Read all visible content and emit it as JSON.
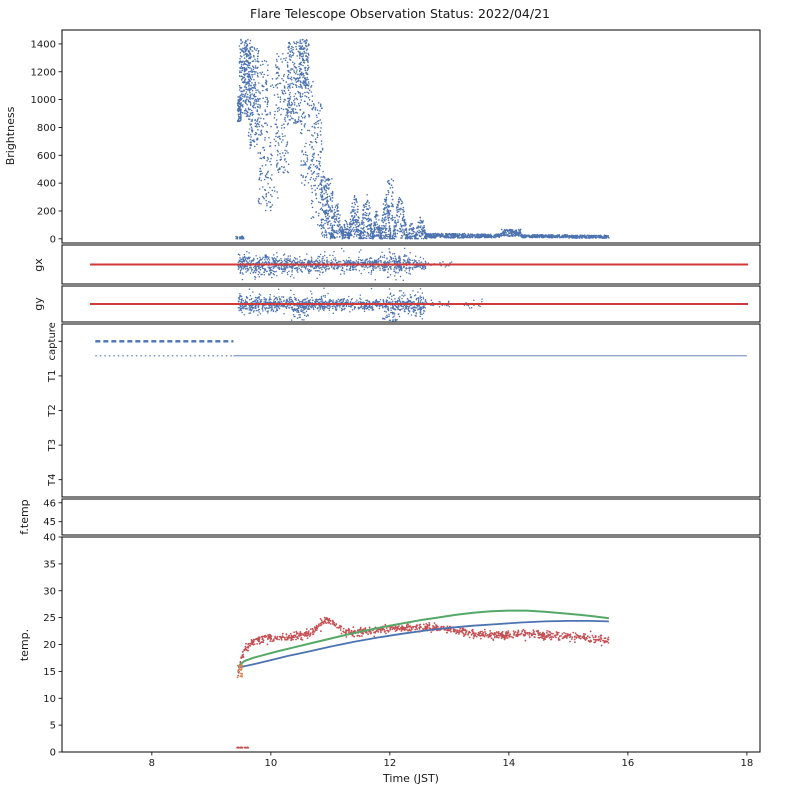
{
  "figure": {
    "title": "Flare Telescope Observation Status: 2022/04/21",
    "xlabel": "Time (JST)",
    "xlim": [
      6.49,
      18.22
    ],
    "xticks": [
      8,
      10,
      12,
      14,
      16,
      18
    ],
    "background": "#ffffff",
    "colors": {
      "blue": "#4c72b0",
      "red": "#c44e52",
      "green": "#55a868",
      "orange": "#dd8452",
      "red_line": "#d03a3a"
    }
  },
  "chart_data": [
    {
      "id": "brightness",
      "type": "scatter",
      "ylabel": "Brightness",
      "ylim": [
        -30,
        1500
      ],
      "yticks": [
        0,
        200,
        400,
        600,
        800,
        1000,
        1200,
        1400
      ],
      "color": "#4c72b0",
      "segments": [
        {
          "x0": 9.44,
          "x1": 9.5,
          "n": 70,
          "dist": "uniform",
          "y0": 840,
          "y1": 1020
        },
        {
          "x0": 9.47,
          "x1": 9.66,
          "n": 260,
          "dist": "uniform",
          "y0": 880,
          "y1": 1435
        },
        {
          "x0": 9.62,
          "x1": 9.8,
          "n": 200,
          "dist": "uniform",
          "y0": 650,
          "y1": 1380
        },
        {
          "x0": 9.78,
          "x1": 9.96,
          "n": 110,
          "dist": "uniform",
          "y0": 230,
          "y1": 1280
        },
        {
          "x0": 9.9,
          "x1": 10.12,
          "n": 70,
          "dist": "uniform",
          "y0": 160,
          "y1": 1150
        },
        {
          "x0": 10.08,
          "x1": 10.3,
          "n": 140,
          "dist": "uniform",
          "y0": 450,
          "y1": 1340
        },
        {
          "x0": 10.28,
          "x1": 10.5,
          "n": 190,
          "dist": "uniform",
          "y0": 820,
          "y1": 1420
        },
        {
          "x0": 10.48,
          "x1": 10.64,
          "n": 150,
          "dist": "uniform",
          "y0": 1080,
          "y1": 1435
        },
        {
          "x0": 10.5,
          "x1": 10.72,
          "n": 110,
          "dist": "uniform",
          "y0": 380,
          "y1": 1150
        },
        {
          "x0": 10.68,
          "x1": 10.88,
          "n": 120,
          "dist": "uniform",
          "y0": 90,
          "y1": 980
        },
        {
          "x0": 10.84,
          "x1": 11.04,
          "n": 170,
          "dist": "uniform",
          "y0": 0,
          "y1": 460
        },
        {
          "x0": 11.0,
          "x1": 11.22,
          "n": 130,
          "dist": "arch",
          "y0": 0,
          "y1": 265
        },
        {
          "x0": 11.2,
          "x1": 11.32,
          "n": 60,
          "dist": "arch",
          "y0": 0,
          "y1": 140
        },
        {
          "x0": 11.3,
          "x1": 11.52,
          "n": 150,
          "dist": "arch",
          "y0": 0,
          "y1": 315
        },
        {
          "x0": 11.5,
          "x1": 11.72,
          "n": 150,
          "dist": "arch",
          "y0": 0,
          "y1": 335
        },
        {
          "x0": 11.7,
          "x1": 11.86,
          "n": 90,
          "dist": "arch",
          "y0": 0,
          "y1": 205
        },
        {
          "x0": 11.84,
          "x1": 12.02,
          "n": 130,
          "dist": "arch",
          "y0": 0,
          "y1": 330
        },
        {
          "x0": 11.96,
          "x1": 12.06,
          "n": 45,
          "dist": "uniform",
          "y0": 120,
          "y1": 430
        },
        {
          "x0": 12.04,
          "x1": 12.3,
          "n": 150,
          "dist": "arch",
          "y0": 0,
          "y1": 300
        },
        {
          "x0": 12.28,
          "x1": 12.44,
          "n": 60,
          "dist": "arch",
          "y0": 0,
          "y1": 120
        },
        {
          "x0": 12.42,
          "x1": 12.62,
          "n": 90,
          "dist": "arch",
          "y0": 0,
          "y1": 160
        },
        {
          "x0": 9.4,
          "x1": 9.56,
          "n": 25,
          "dist": "uniform",
          "y0": 0,
          "y1": 25
        },
        {
          "x0": 12.6,
          "x1": 13.3,
          "n": 230,
          "dist": "uniform",
          "y0": 6,
          "y1": 38
        },
        {
          "x0": 13.3,
          "x1": 13.85,
          "n": 180,
          "dist": "uniform",
          "y0": 8,
          "y1": 34
        },
        {
          "x0": 13.85,
          "x1": 14.2,
          "n": 130,
          "dist": "uniform",
          "y0": 18,
          "y1": 68
        },
        {
          "x0": 14.2,
          "x1": 15.0,
          "n": 260,
          "dist": "uniform",
          "y0": 8,
          "y1": 30
        },
        {
          "x0": 15.0,
          "x1": 15.68,
          "n": 200,
          "dist": "uniform",
          "y0": 5,
          "y1": 26
        }
      ]
    },
    {
      "id": "gx",
      "type": "scatter+line",
      "ylabel": "gx",
      "ylim": [
        -1.3,
        1.3
      ],
      "scatter_color": "#4c72b0",
      "line": {
        "y": 0,
        "x0": 6.96,
        "x1": 18.02,
        "color": "#d03a3a",
        "width": 2
      },
      "segments": [
        {
          "x0": 9.45,
          "x1": 10.1,
          "n": 300,
          "dist": "normal",
          "mu": 0,
          "sigma": 0.32
        },
        {
          "x0": 10.1,
          "x1": 10.95,
          "n": 320,
          "dist": "normal",
          "mu": 0,
          "sigma": 0.28
        },
        {
          "x0": 10.95,
          "x1": 11.85,
          "n": 260,
          "dist": "normal",
          "mu": 0,
          "sigma": 0.2
        },
        {
          "x0": 11.85,
          "x1": 12.35,
          "n": 200,
          "dist": "normal",
          "mu": 0,
          "sigma": 0.3
        },
        {
          "x0": 12.35,
          "x1": 12.6,
          "n": 70,
          "dist": "normal",
          "mu": 0,
          "sigma": 0.18
        },
        {
          "x0": 12.6,
          "x1": 13.05,
          "n": 18,
          "dist": "normal",
          "mu": 0,
          "sigma": 0.12
        },
        {
          "x0": 9.5,
          "x1": 12.5,
          "n": 14,
          "dist": "uniform",
          "y0": -1.15,
          "y1": -0.5
        },
        {
          "x0": 9.5,
          "x1": 12.5,
          "n": 10,
          "dist": "uniform",
          "y0": 0.5,
          "y1": 1.1
        }
      ]
    },
    {
      "id": "gy",
      "type": "scatter+line",
      "ylabel": "gy",
      "ylim": [
        -1.3,
        1.3
      ],
      "scatter_color": "#4c72b0",
      "line": {
        "y": 0,
        "x0": 6.96,
        "x1": 18.02,
        "color": "#d03a3a",
        "width": 2
      },
      "segments": [
        {
          "x0": 9.45,
          "x1": 10.15,
          "n": 300,
          "dist": "normal",
          "mu": 0,
          "sigma": 0.3
        },
        {
          "x0": 10.15,
          "x1": 11.05,
          "n": 320,
          "dist": "normal",
          "mu": 0,
          "sigma": 0.26
        },
        {
          "x0": 11.05,
          "x1": 12.0,
          "n": 260,
          "dist": "normal",
          "mu": 0,
          "sigma": 0.22
        },
        {
          "x0": 12.0,
          "x1": 12.6,
          "n": 220,
          "dist": "normal",
          "mu": 0,
          "sigma": 0.33
        },
        {
          "x0": 10.35,
          "x1": 10.62,
          "n": 45,
          "dist": "uniform",
          "y0": -1.2,
          "y1": -0.1
        },
        {
          "x0": 11.88,
          "x1": 12.18,
          "n": 45,
          "dist": "uniform",
          "y0": -1.25,
          "y1": -0.1
        },
        {
          "x0": 12.38,
          "x1": 12.58,
          "n": 30,
          "dist": "uniform",
          "y0": -1.15,
          "y1": -0.1
        },
        {
          "x0": 12.6,
          "x1": 13.0,
          "n": 25,
          "dist": "normal",
          "mu": 0,
          "sigma": 0.15
        },
        {
          "x0": 13.25,
          "x1": 13.55,
          "n": 18,
          "dist": "normal",
          "mu": 0,
          "sigma": 0.12
        },
        {
          "x0": 9.5,
          "x1": 12.5,
          "n": 12,
          "dist": "uniform",
          "y0": 0.5,
          "y1": 1.15
        }
      ]
    },
    {
      "id": "capture",
      "type": "status",
      "categories": [
        "capture",
        "T1",
        "T2",
        "T3",
        "T4"
      ],
      "ylim": [
        -0.5,
        4.5
      ],
      "lines": [
        {
          "x0": 7.05,
          "x1": 9.37,
          "y": 4.0,
          "color": "#4c72b0",
          "width": 2.4,
          "dash": "5 3"
        },
        {
          "x0": 7.05,
          "x1": 9.37,
          "y": 3.58,
          "color": "#4c72b0",
          "width": 1.1,
          "dash": "1.5 3"
        },
        {
          "x0": 9.37,
          "x1": 18.0,
          "y": 3.58,
          "color": "#4c72b0",
          "width": 0.9,
          "dash": ""
        }
      ]
    },
    {
      "id": "f-temp",
      "type": "empty",
      "ylabel": "f.temp",
      "ylim": [
        44.3,
        46.2
      ],
      "yticks": [
        46,
        45
      ]
    },
    {
      "id": "temp",
      "type": "lines+scatter",
      "ylabel": "temp.",
      "ylim": [
        0,
        40
      ],
      "yticks": [
        0,
        5,
        10,
        15,
        20,
        25,
        30,
        35,
        40
      ],
      "series": [
        {
          "name": "series-red",
          "kind": "scatter-path",
          "color": "#c44e52",
          "sigma": 0.38,
          "n": 1000,
          "dot": 1.8,
          "path": [
            [
              9.44,
              14.0
            ],
            [
              9.48,
              16.0
            ],
            [
              9.52,
              17.8
            ],
            [
              9.58,
              19.2
            ],
            [
              9.65,
              20.2
            ],
            [
              9.75,
              20.8
            ],
            [
              9.9,
              21.1
            ],
            [
              10.1,
              21.2
            ],
            [
              10.3,
              21.3
            ],
            [
              10.5,
              21.6
            ],
            [
              10.65,
              22.1
            ],
            [
              10.78,
              23.2
            ],
            [
              10.88,
              24.3
            ],
            [
              10.95,
              24.7
            ],
            [
              11.05,
              24.0
            ],
            [
              11.15,
              23.0
            ],
            [
              11.25,
              22.4
            ],
            [
              11.4,
              22.3
            ],
            [
              11.6,
              22.5
            ],
            [
              11.8,
              22.7
            ],
            [
              12.0,
              22.9
            ],
            [
              12.2,
              23.1
            ],
            [
              12.45,
              23.2
            ],
            [
              12.7,
              23.1
            ],
            [
              12.9,
              22.9
            ],
            [
              13.1,
              22.6
            ],
            [
              13.3,
              22.2
            ],
            [
              13.5,
              21.9
            ],
            [
              13.7,
              21.7
            ],
            [
              13.9,
              21.7
            ],
            [
              14.1,
              21.8
            ],
            [
              14.3,
              21.9
            ],
            [
              14.5,
              21.8
            ],
            [
              14.7,
              21.7
            ],
            [
              14.9,
              21.6
            ],
            [
              15.1,
              21.4
            ],
            [
              15.3,
              21.2
            ],
            [
              15.5,
              21.0
            ],
            [
              15.68,
              20.8
            ]
          ]
        },
        {
          "name": "series-blue",
          "kind": "line",
          "color": "#4c72b0",
          "width": 1.8,
          "points": [
            [
              9.45,
              15.7
            ],
            [
              9.7,
              16.3
            ],
            [
              10.0,
              17.1
            ],
            [
              10.3,
              17.9
            ],
            [
              10.6,
              18.6
            ],
            [
              11.0,
              19.6
            ],
            [
              11.4,
              20.5
            ],
            [
              11.8,
              21.3
            ],
            [
              12.2,
              22.0
            ],
            [
              12.6,
              22.6
            ],
            [
              13.0,
              23.1
            ],
            [
              13.4,
              23.5
            ],
            [
              13.8,
              23.8
            ],
            [
              14.2,
              24.1
            ],
            [
              14.6,
              24.3
            ],
            [
              15.0,
              24.4
            ],
            [
              15.35,
              24.4
            ],
            [
              15.68,
              24.3
            ]
          ]
        },
        {
          "name": "series-green",
          "kind": "line",
          "color": "#55a868",
          "width": 2,
          "points": [
            [
              9.45,
              15.9
            ],
            [
              9.55,
              16.9
            ],
            [
              9.7,
              17.5
            ],
            [
              9.9,
              18.1
            ],
            [
              10.1,
              18.7
            ],
            [
              10.4,
              19.5
            ],
            [
              10.7,
              20.3
            ],
            [
              11.0,
              21.1
            ],
            [
              11.3,
              21.9
            ],
            [
              11.6,
              22.6
            ],
            [
              11.9,
              23.3
            ],
            [
              12.2,
              23.9
            ],
            [
              12.5,
              24.5
            ],
            [
              12.8,
              25.0
            ],
            [
              13.1,
              25.5
            ],
            [
              13.4,
              25.9
            ],
            [
              13.7,
              26.2
            ],
            [
              14.0,
              26.3
            ],
            [
              14.3,
              26.3
            ],
            [
              14.6,
              26.1
            ],
            [
              14.9,
              25.8
            ],
            [
              15.2,
              25.5
            ],
            [
              15.45,
              25.2
            ],
            [
              15.68,
              24.9
            ]
          ]
        },
        {
          "name": "series-orange-start",
          "kind": "scatter",
          "color": "#dd8452",
          "dot": 1.8,
          "segments": [
            {
              "x0": 9.42,
              "x1": 9.52,
              "n": 20,
              "dist": "uniform",
              "y0": 13.6,
              "y1": 16.2
            }
          ]
        },
        {
          "name": "series-red-baseline",
          "kind": "scatter",
          "color": "#c44e52",
          "dot": 1.8,
          "segments": [
            {
              "x0": 9.42,
              "x1": 9.62,
              "n": 25,
              "dist": "uniform",
              "y0": 0,
              "y1": 0.25
            }
          ]
        }
      ]
    }
  ]
}
